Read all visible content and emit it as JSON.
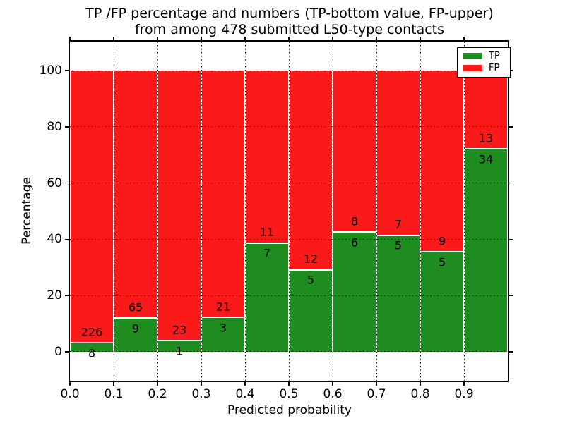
{
  "title": {
    "line1": "TP /FP percentage and numbers (TP-bottom value, FP-upper)",
    "line2": "from among 478 submitted L50-type contacts"
  },
  "axes": {
    "xlabel": "Predicted probability",
    "ylabel": "Percentage",
    "x_tick_labels": [
      "0.0",
      "0.1",
      "0.2",
      "0.3",
      "0.4",
      "0.5",
      "0.6",
      "0.7",
      "0.8",
      "0.9"
    ],
    "y_tick_labels": [
      "0",
      "20",
      "40",
      "60",
      "80",
      "100"
    ],
    "y_tick_values": [
      0,
      20,
      40,
      60,
      80,
      100
    ],
    "grid": "dotted both directions"
  },
  "legend": {
    "position": "upper right",
    "items": [
      {
        "label": "TP",
        "color": "#1f8c1f"
      },
      {
        "label": "FP",
        "color": "#fa1a1a"
      }
    ]
  },
  "colors": {
    "tp": "#1f8c1f",
    "fp": "#fa1a1a",
    "grid": "#000000",
    "frame": "#000000",
    "background": "#ffffff",
    "bar_edge": "#ffffff",
    "text": "#000000"
  },
  "chart_data": {
    "type": "bar",
    "stacked": true,
    "orientation": "vertical",
    "title": "TP /FP percentage and numbers (TP-bottom value, FP-upper) from among 478 submitted L50-type contacts",
    "xlabel": "Predicted probability",
    "ylabel": "Percentage",
    "total_contacts": 478,
    "x_bin_edges": [
      0.0,
      0.1,
      0.2,
      0.3,
      0.4,
      0.5,
      0.6,
      0.7,
      0.8,
      0.9,
      1.0
    ],
    "xlim": [
      0.0,
      1.0
    ],
    "ylim": [
      -10.3,
      110.3
    ],
    "series": [
      {
        "name": "TP",
        "counts": [
          8,
          9,
          1,
          3,
          7,
          5,
          6,
          5,
          5,
          34
        ],
        "pct": [
          3.42,
          12.16,
          4.17,
          12.5,
          38.89,
          29.41,
          42.86,
          41.67,
          35.71,
          72.34
        ]
      },
      {
        "name": "FP",
        "counts": [
          226,
          65,
          23,
          21,
          11,
          12,
          8,
          7,
          9,
          13
        ],
        "pct": [
          96.58,
          87.84,
          95.83,
          87.5,
          61.11,
          70.59,
          57.14,
          58.33,
          64.29,
          27.66
        ]
      }
    ],
    "stack_total_pct_per_bin": 100,
    "label_note_visible": "each bar shows FP count above the TP/FP boundary and TP count below it"
  }
}
